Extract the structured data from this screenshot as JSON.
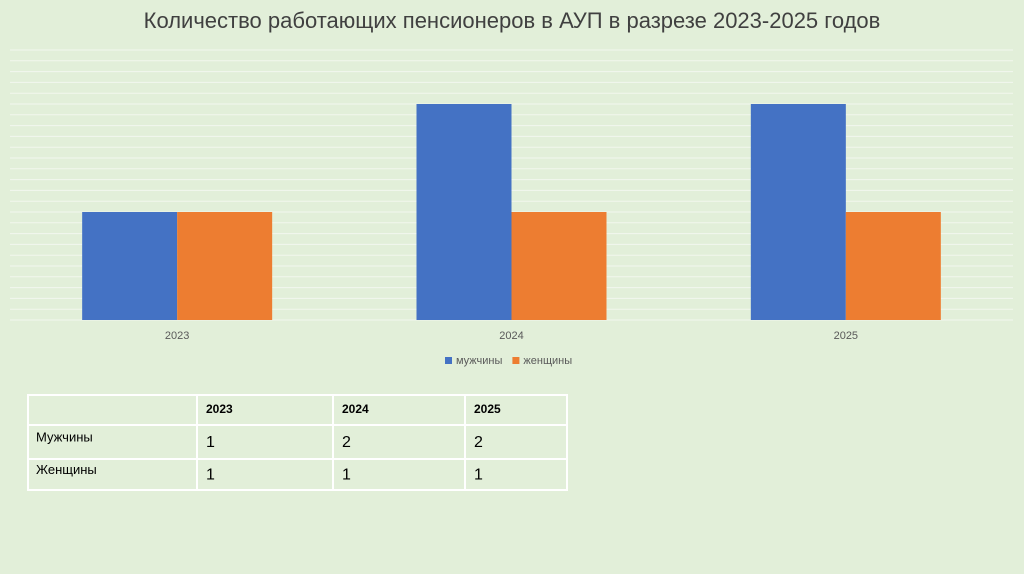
{
  "chart_data": {
    "type": "bar",
    "title": "Количество работающих пенсионеров в АУП в разрезе 2023-2025 годов",
    "categories": [
      "2023",
      "2024",
      "2025"
    ],
    "series": [
      {
        "name": "мужчины",
        "color": "#4472c4",
        "values": [
          1,
          2,
          2
        ]
      },
      {
        "name": "женщины",
        "color": "#ed7d31",
        "values": [
          1,
          1,
          1
        ]
      }
    ],
    "ylim": [
      0,
      2.5
    ],
    "yticks": [
      0,
      0.1,
      0.2,
      0.3,
      0.4,
      0.5,
      0.6,
      0.7,
      0.8,
      0.9,
      1,
      1.1,
      1.2,
      1.3,
      1.4,
      1.5,
      1.6,
      1.7,
      1.8,
      1.9,
      2,
      2.1,
      2.2,
      2.3,
      2.4,
      2.5
    ],
    "grid": true,
    "legend": "bottom"
  },
  "table": {
    "columns": [
      "2023",
      "2024",
      "2025"
    ],
    "rows": [
      {
        "label": "Мужчины",
        "values": [
          1,
          2,
          2
        ]
      },
      {
        "label": "Женщины",
        "values": [
          1,
          1,
          1
        ]
      }
    ]
  }
}
